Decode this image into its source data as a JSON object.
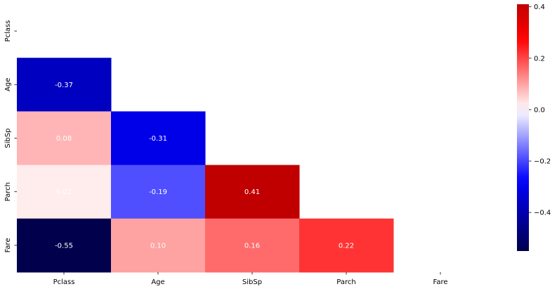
{
  "chart_data": {
    "type": "heatmap",
    "title": "",
    "xlabel": "",
    "ylabel": "",
    "x_categories": [
      "Pclass",
      "Age",
      "SibSp",
      "Parch",
      "Fare"
    ],
    "y_categories": [
      "Pclass",
      "Age",
      "SibSp",
      "Parch",
      "Fare"
    ],
    "mask": "upper triangle including diagonal",
    "cells": [
      {
        "row": "Age",
        "col": "Pclass",
        "value": -0.37,
        "label": "-0.37"
      },
      {
        "row": "SibSp",
        "col": "Pclass",
        "value": 0.08,
        "label": "0.08"
      },
      {
        "row": "SibSp",
        "col": "Age",
        "value": -0.31,
        "label": "-0.31"
      },
      {
        "row": "Parch",
        "col": "Pclass",
        "value": 0.02,
        "label": "0.02"
      },
      {
        "row": "Parch",
        "col": "Age",
        "value": -0.19,
        "label": "-0.19"
      },
      {
        "row": "Parch",
        "col": "SibSp",
        "value": 0.41,
        "label": "0.41"
      },
      {
        "row": "Fare",
        "col": "Pclass",
        "value": -0.55,
        "label": "-0.55"
      },
      {
        "row": "Fare",
        "col": "Age",
        "value": 0.1,
        "label": "0.10"
      },
      {
        "row": "Fare",
        "col": "SibSp",
        "value": 0.16,
        "label": "0.16"
      },
      {
        "row": "Fare",
        "col": "Parch",
        "value": 0.22,
        "label": "0.22"
      }
    ],
    "colormap": "seismic",
    "colorbar": {
      "vmin": -0.55,
      "vmax": 0.41,
      "center": 0,
      "ticks": [
        0.4,
        0.2,
        0.0,
        -0.2,
        -0.4
      ],
      "tick_labels": [
        "0.4",
        "0.2",
        "0.0",
        "−0.2",
        "−0.4"
      ]
    },
    "grid": false,
    "legend": "colorbar right"
  }
}
